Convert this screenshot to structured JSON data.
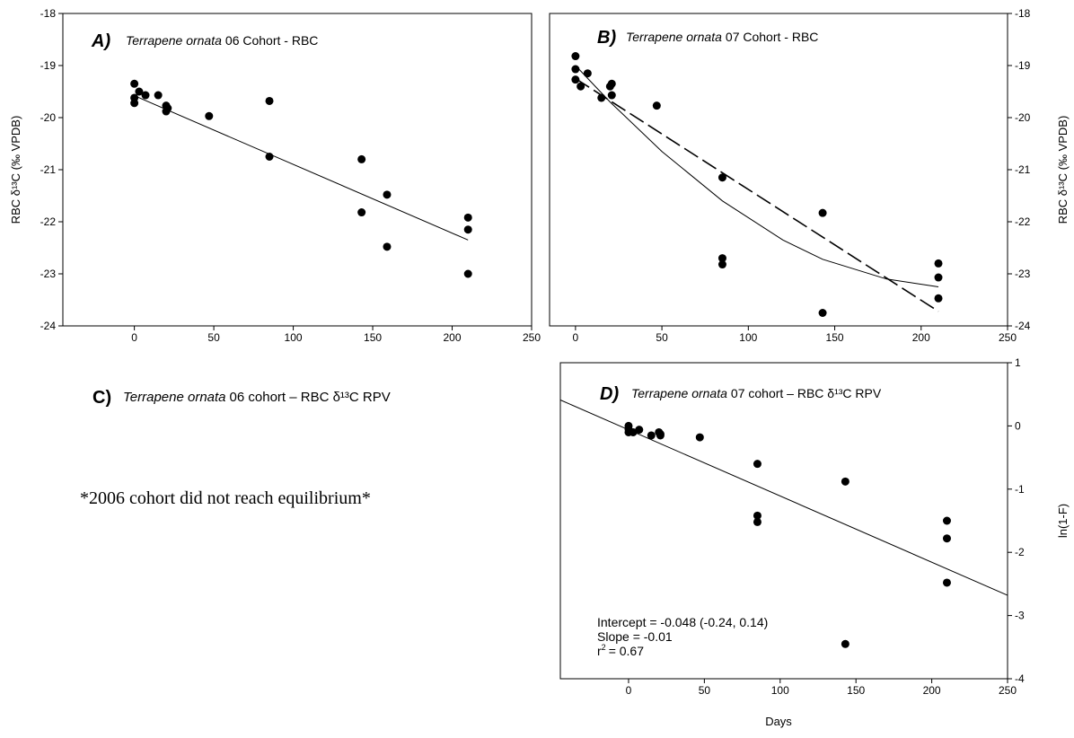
{
  "panel_c": {
    "letter": "C)",
    "species": "Terrapene ornata",
    "title_rest": "06 cohort – RBC δ¹³C  RPV",
    "note": "*2006 cohort did not reach equilibrium*"
  },
  "shared_xlabel": "Days",
  "chart_data": [
    {
      "id": "A",
      "type": "scatter",
      "letter": "A)",
      "species": "Terrapene ornata",
      "title_rest": "06 Cohort - RBC",
      "xlim": [
        -45,
        250
      ],
      "ylim": [
        -24,
        -18
      ],
      "xticks": [
        0,
        50,
        100,
        150,
        200,
        250
      ],
      "yticks": [
        -24,
        -23,
        -22,
        -21,
        -20,
        -19,
        -18
      ],
      "ylabel": "RBC δ¹³C (‰ VPDB)",
      "grid": false,
      "points": [
        [
          0,
          -19.35
        ],
        [
          0,
          -19.62
        ],
        [
          0,
          -19.72
        ],
        [
          3,
          -19.5
        ],
        [
          7,
          -19.57
        ],
        [
          15,
          -19.57
        ],
        [
          20,
          -19.77
        ],
        [
          20,
          -19.88
        ],
        [
          21,
          -19.82
        ],
        [
          47,
          -19.97
        ],
        [
          85,
          -19.68
        ],
        [
          85,
          -20.75
        ],
        [
          143,
          -20.8
        ],
        [
          143,
          -21.82
        ],
        [
          159,
          -21.48
        ],
        [
          159,
          -22.48
        ],
        [
          210,
          -21.92
        ],
        [
          210,
          -22.15
        ],
        [
          210,
          -23.0
        ]
      ],
      "fit_lines": [
        {
          "kind": "linear",
          "style": "solid",
          "x": [
            0,
            210
          ],
          "y": [
            -19.58,
            -22.35
          ]
        }
      ]
    },
    {
      "id": "B",
      "type": "scatter",
      "letter": "B)",
      "species": "Terrapene ornata",
      "title_rest": "07 Cohort - RBC",
      "xlim": [
        -15,
        250
      ],
      "ylim": [
        -24,
        -18
      ],
      "xticks": [
        0,
        50,
        100,
        150,
        200,
        250
      ],
      "yticks": [
        -24,
        -23,
        -22,
        -21,
        -20,
        -19,
        -18
      ],
      "ylabel": "RBC δ¹³C (‰ VPDB)",
      "grid": false,
      "points": [
        [
          0,
          -18.82
        ],
        [
          0,
          -19.07
        ],
        [
          0,
          -19.27
        ],
        [
          3,
          -19.4
        ],
        [
          7,
          -19.15
        ],
        [
          15,
          -19.62
        ],
        [
          20,
          -19.4
        ],
        [
          21,
          -19.35
        ],
        [
          21,
          -19.57
        ],
        [
          47,
          -19.77
        ],
        [
          85,
          -21.15
        ],
        [
          85,
          -22.7
        ],
        [
          85,
          -22.82
        ],
        [
          143,
          -21.83
        ],
        [
          143,
          -23.75
        ],
        [
          210,
          -22.8
        ],
        [
          210,
          -23.07
        ],
        [
          210,
          -23.47
        ]
      ],
      "fit_lines": [
        {
          "kind": "exponential",
          "style": "solid",
          "x": [
            0,
            20,
            50,
            85,
            120,
            143,
            180,
            210
          ],
          "y": [
            -19.0,
            -19.7,
            -20.65,
            -21.6,
            -22.35,
            -22.72,
            -23.1,
            -23.25
          ]
        },
        {
          "kind": "linear",
          "style": "dashed",
          "x": [
            0,
            210
          ],
          "y": [
            -19.25,
            -23.72
          ]
        }
      ]
    },
    {
      "id": "D",
      "type": "scatter",
      "letter": "D)",
      "species": "Terrapene ornata",
      "title_rest": "07 cohort – RBC δ¹³C RPV",
      "xlim": [
        -45,
        250
      ],
      "ylim": [
        -4,
        1
      ],
      "xticks": [
        0,
        50,
        100,
        150,
        200,
        250
      ],
      "yticks": [
        -4,
        -3,
        -2,
        -1,
        0,
        1
      ],
      "ylabel": "ln(1-F)",
      "grid": false,
      "points": [
        [
          0,
          0.0
        ],
        [
          0,
          -0.05
        ],
        [
          0,
          -0.1
        ],
        [
          3,
          -0.1
        ],
        [
          7,
          -0.06
        ],
        [
          15,
          -0.15
        ],
        [
          20,
          -0.1
        ],
        [
          21,
          -0.13
        ],
        [
          21,
          -0.15
        ],
        [
          47,
          -0.18
        ],
        [
          85,
          -0.6
        ],
        [
          85,
          -1.42
        ],
        [
          85,
          -1.52
        ],
        [
          143,
          -0.88
        ],
        [
          143,
          -3.45
        ],
        [
          210,
          -1.5
        ],
        [
          210,
          -1.78
        ],
        [
          210,
          -2.48
        ]
      ],
      "fit_lines": [
        {
          "kind": "linear",
          "style": "solid",
          "x": [
            -45,
            250
          ],
          "y": [
            0.41,
            -2.68
          ]
        }
      ],
      "stats": [
        "Intercept = -0.048 (-0.24, 0.14)",
        "Slope = -0.01"
      ],
      "r2_label": "r",
      "r2_value": "= 0.67"
    }
  ]
}
